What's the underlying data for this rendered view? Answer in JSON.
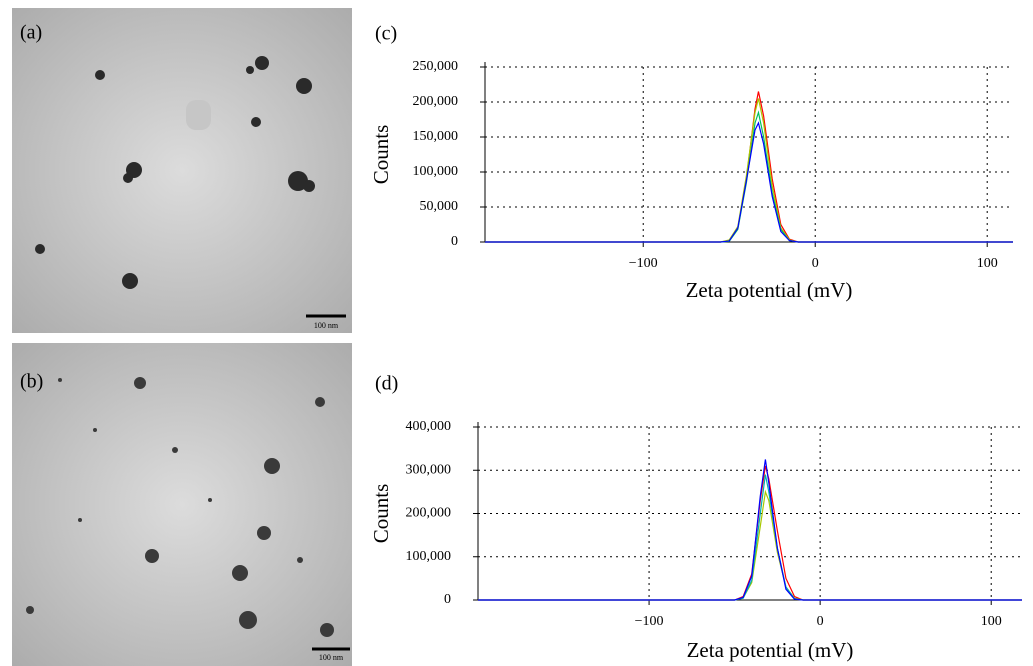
{
  "panels": [
    {
      "label": "(a)",
      "scale_bar": "100 nm"
    },
    {
      "label": "(b)",
      "scale_bar": "100 nm"
    }
  ],
  "chart_data": [
    {
      "type": "line",
      "title": "(c)",
      "x_label": "Zeta potential (mV)",
      "y_label": "Counts",
      "x": [
        -192,
        -55,
        -50,
        -45,
        -40,
        -35,
        -33,
        -30,
        -25,
        -20,
        -15,
        -10,
        115
      ],
      "series": [
        {
          "color": "#ff0000",
          "values": [
            0,
            0,
            2000,
            20000,
            90000,
            190000,
            215000,
            180000,
            90000,
            25000,
            4000,
            0,
            0
          ]
        },
        {
          "color": "#a8c800",
          "values": [
            0,
            0,
            3000,
            22000,
            95000,
            185000,
            205000,
            170000,
            80000,
            20000,
            3000,
            0,
            0
          ]
        },
        {
          "color": "#00c060",
          "values": [
            0,
            0,
            1000,
            18000,
            85000,
            170000,
            185000,
            150000,
            70000,
            18000,
            2000,
            0,
            0
          ]
        },
        {
          "color": "#0000ff",
          "values": [
            0,
            0,
            1500,
            20000,
            88000,
            160000,
            170000,
            140000,
            65000,
            15000,
            2000,
            0,
            0
          ]
        }
      ],
      "xlim": [
        -192,
        115
      ],
      "ylim": [
        0,
        250000
      ],
      "xticks": [
        {
          "value": -100,
          "label": "−100"
        },
        0,
        100
      ],
      "yticks": [
        0,
        {
          "value": 50000,
          "label": "50,000"
        },
        {
          "value": 100000,
          "label": "100,000"
        },
        {
          "value": 150000,
          "label": "150,000"
        },
        {
          "value": 200000,
          "label": "200,000"
        },
        {
          "value": 250000,
          "label": "250,000"
        }
      ],
      "grid": true
    },
    {
      "type": "line",
      "title": "(d)",
      "x_label": "Zeta potential (mV)",
      "y_label": "Counts",
      "x": [
        -200,
        -50,
        -45,
        -40,
        -35,
        -32,
        -30,
        -25,
        -20,
        -15,
        -10,
        118
      ],
      "series": [
        {
          "color": "#ff0000",
          "values": [
            0,
            0,
            8000,
            60000,
            230000,
            310000,
            280000,
            160000,
            50000,
            8000,
            0,
            0
          ]
        },
        {
          "color": "#a8c800",
          "values": [
            0,
            0,
            5000,
            40000,
            170000,
            250000,
            230000,
            110000,
            30000,
            4000,
            0,
            0
          ]
        },
        {
          "color": "#00b0b0",
          "values": [
            0,
            0,
            4000,
            45000,
            200000,
            290000,
            250000,
            120000,
            30000,
            3000,
            0,
            0
          ]
        },
        {
          "color": "#0000ff",
          "values": [
            0,
            0,
            6000,
            55000,
            240000,
            325000,
            270000,
            120000,
            25000,
            2000,
            0,
            0
          ]
        }
      ],
      "xlim": [
        -200,
        118
      ],
      "ylim": [
        0,
        400000
      ],
      "xticks": [
        {
          "value": -100,
          "label": "−100"
        },
        0,
        100
      ],
      "yticks": [
        0,
        {
          "value": 100000,
          "label": "100,000"
        },
        {
          "value": 200000,
          "label": "200,000"
        },
        {
          "value": 300000,
          "label": "300,000"
        },
        {
          "value": 400000,
          "label": "400,000"
        }
      ],
      "grid": true
    }
  ]
}
